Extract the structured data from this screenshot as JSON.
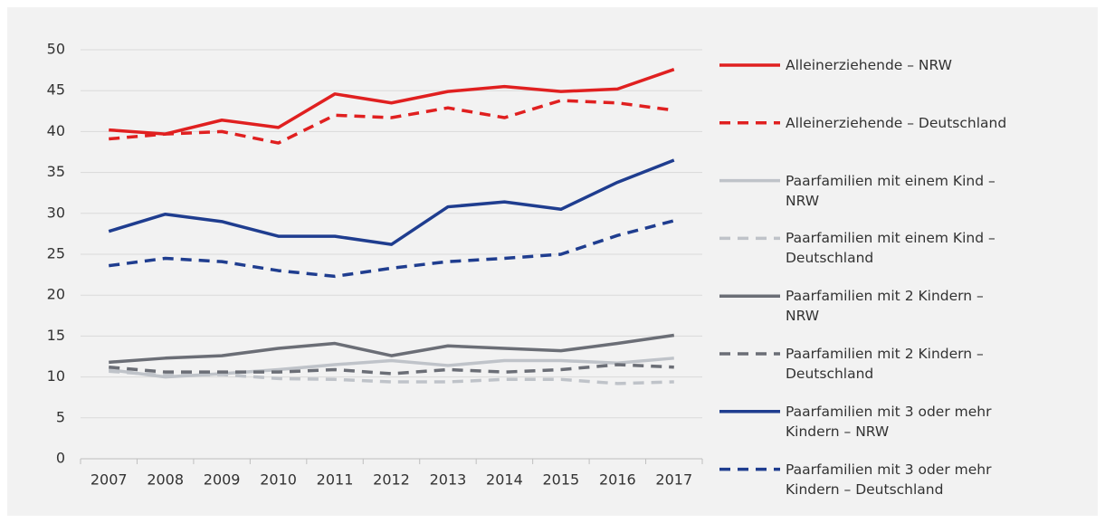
{
  "chart_data": {
    "type": "line",
    "categories": [
      "2007",
      "2008",
      "2009",
      "2010",
      "2011",
      "2012",
      "2013",
      "2014",
      "2015",
      "2016",
      "2017"
    ],
    "ylim": [
      0,
      50
    ],
    "yticks": [
      0,
      5,
      10,
      15,
      20,
      25,
      30,
      35,
      40,
      45,
      50
    ],
    "grid": true,
    "legend": "right",
    "series": [
      {
        "name": "Alleinerziehende – NRW",
        "color": "#e02020",
        "dashed": false,
        "values": [
          40.2,
          39.7,
          41.4,
          40.5,
          44.6,
          43.5,
          44.9,
          45.5,
          44.9,
          45.2,
          47.6
        ]
      },
      {
        "name": "Alleinerziehende – Deutschland",
        "color": "#e02020",
        "dashed": true,
        "values": [
          39.1,
          39.7,
          40.0,
          38.6,
          42.0,
          41.7,
          42.9,
          41.7,
          43.8,
          43.5,
          42.6
        ]
      },
      {
        "name": "Paarfamilien mit einem Kind – NRW",
        "color": "#bfc3c9",
        "dashed": false,
        "values": [
          10.9,
          10.0,
          10.4,
          10.9,
          11.5,
          12.0,
          11.4,
          12.0,
          12.0,
          11.7,
          12.3
        ]
      },
      {
        "name": "Paarfamilien mit einem Kind – Deutschland",
        "color": "#bfc3c9",
        "dashed": true,
        "values": [
          10.7,
          10.2,
          10.3,
          9.8,
          9.7,
          9.4,
          9.4,
          9.7,
          9.7,
          9.2,
          9.4
        ]
      },
      {
        "name": "Paarfamilien mit 2 Kindern – NRW",
        "color": "#6b6e76",
        "dashed": false,
        "values": [
          11.8,
          12.3,
          12.6,
          13.5,
          14.1,
          12.6,
          13.8,
          13.5,
          13.2,
          14.1,
          15.1
        ]
      },
      {
        "name": "Paarfamilien mit 2 Kindern – Deutschland",
        "color": "#6b6e76",
        "dashed": true,
        "values": [
          11.2,
          10.6,
          10.6,
          10.6,
          10.9,
          10.4,
          10.9,
          10.6,
          10.9,
          11.5,
          11.2
        ]
      },
      {
        "name": "Paarfamilien mit 3 oder mehr Kindern – NRW",
        "color": "#1f3d8f",
        "dashed": false,
        "values": [
          27.8,
          29.9,
          29.0,
          27.2,
          27.2,
          26.2,
          30.8,
          31.4,
          30.5,
          33.8,
          36.5
        ]
      },
      {
        "name": "Paarfamilien mit 3 oder mehr Kindern – Deutschland",
        "color": "#1f3d8f",
        "dashed": true,
        "values": [
          23.6,
          24.5,
          24.1,
          23.0,
          22.3,
          23.3,
          24.1,
          24.5,
          25.0,
          27.3,
          29.1
        ]
      }
    ]
  }
}
